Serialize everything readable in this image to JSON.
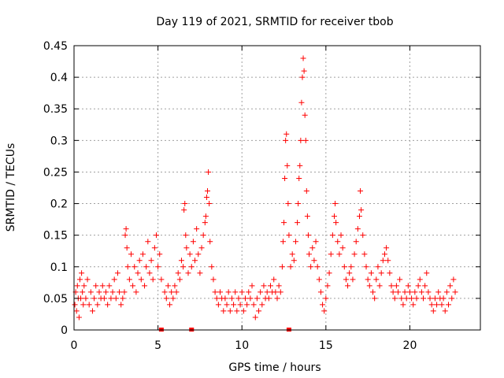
{
  "chart_data": {
    "type": "scatter",
    "title": "Day 119 of 2021, SRMTID for receiver tbob",
    "xlabel": "GPS time / hours",
    "ylabel": "SRMTID / TECUs",
    "xlim": [
      0,
      24.2
    ],
    "ylim": [
      0,
      0.45
    ],
    "x_ticks": [
      0,
      5,
      10,
      15,
      20
    ],
    "x_tick_labels": [
      "0",
      "5",
      "10",
      "15",
      "20"
    ],
    "y_ticks": [
      0,
      0.05,
      0.1,
      0.15,
      0.2,
      0.25,
      0.3,
      0.35,
      0.4,
      0.45
    ],
    "y_tick_labels": [
      "0",
      "0.05",
      "0.1",
      "0.15",
      "0.2",
      "0.25",
      "0.3",
      "0.35",
      "0.4",
      "0.45"
    ],
    "grid": true,
    "marker": "+",
    "color": "#ff0000",
    "series": [
      {
        "name": "SRMTID",
        "points": [
          [
            0.05,
            0.04
          ],
          [
            0.1,
            0.06
          ],
          [
            0.15,
            0.03
          ],
          [
            0.2,
            0.07
          ],
          [
            0.25,
            0.05
          ],
          [
            0.3,
            0.02
          ],
          [
            0.35,
            0.08
          ],
          [
            0.4,
            0.05
          ],
          [
            0.45,
            0.09
          ],
          [
            0.5,
            0.06
          ],
          [
            0.55,
            0.04
          ],
          [
            0.6,
            0.07
          ],
          [
            0.7,
            0.05
          ],
          [
            0.8,
            0.08
          ],
          [
            0.9,
            0.04
          ],
          [
            1.0,
            0.06
          ],
          [
            1.1,
            0.03
          ],
          [
            1.2,
            0.05
          ],
          [
            1.3,
            0.07
          ],
          [
            1.4,
            0.04
          ],
          [
            1.5,
            0.06
          ],
          [
            1.6,
            0.05
          ],
          [
            1.7,
            0.07
          ],
          [
            1.8,
            0.05
          ],
          [
            1.9,
            0.06
          ],
          [
            2.0,
            0.04
          ],
          [
            2.1,
            0.07
          ],
          [
            2.2,
            0.05
          ],
          [
            2.3,
            0.06
          ],
          [
            2.4,
            0.08
          ],
          [
            2.5,
            0.05
          ],
          [
            2.6,
            0.09
          ],
          [
            2.7,
            0.06
          ],
          [
            2.8,
            0.04
          ],
          [
            2.9,
            0.05
          ],
          [
            3.0,
            0.06
          ],
          [
            3.05,
            0.15
          ],
          [
            3.1,
            0.16
          ],
          [
            3.15,
            0.13
          ],
          [
            3.2,
            0.1
          ],
          [
            3.3,
            0.08
          ],
          [
            3.4,
            0.12
          ],
          [
            3.5,
            0.07
          ],
          [
            3.6,
            0.1
          ],
          [
            3.7,
            0.06
          ],
          [
            3.8,
            0.09
          ],
          [
            3.9,
            0.11
          ],
          [
            4.0,
            0.08
          ],
          [
            4.1,
            0.12
          ],
          [
            4.2,
            0.07
          ],
          [
            4.3,
            0.1
          ],
          [
            4.4,
            0.14
          ],
          [
            4.5,
            0.09
          ],
          [
            4.6,
            0.11
          ],
          [
            4.7,
            0.08
          ],
          [
            4.8,
            0.13
          ],
          [
            4.9,
            0.15
          ],
          [
            5.0,
            0.1
          ],
          [
            5.1,
            0.12
          ],
          [
            5.2,
            0.08
          ],
          [
            5.4,
            0.06
          ],
          [
            5.5,
            0.05
          ],
          [
            5.6,
            0.07
          ],
          [
            5.7,
            0.04
          ],
          [
            5.8,
            0.06
          ],
          [
            5.9,
            0.05
          ],
          [
            6.0,
            0.07
          ],
          [
            6.1,
            0.06
          ],
          [
            6.2,
            0.09
          ],
          [
            6.3,
            0.08
          ],
          [
            6.4,
            0.11
          ],
          [
            6.5,
            0.1
          ],
          [
            6.55,
            0.19
          ],
          [
            6.6,
            0.2
          ],
          [
            6.65,
            0.15
          ],
          [
            6.7,
            0.13
          ],
          [
            6.8,
            0.09
          ],
          [
            6.9,
            0.12
          ],
          [
            7.0,
            0.1
          ],
          [
            7.1,
            0.14
          ],
          [
            7.2,
            0.11
          ],
          [
            7.3,
            0.16
          ],
          [
            7.4,
            0.12
          ],
          [
            7.5,
            0.09
          ],
          [
            7.6,
            0.13
          ],
          [
            7.7,
            0.15
          ],
          [
            7.8,
            0.17
          ],
          [
            7.85,
            0.18
          ],
          [
            7.9,
            0.21
          ],
          [
            7.95,
            0.22
          ],
          [
            8.0,
            0.25
          ],
          [
            8.05,
            0.2
          ],
          [
            8.1,
            0.14
          ],
          [
            8.2,
            0.1
          ],
          [
            8.3,
            0.08
          ],
          [
            8.4,
            0.06
          ],
          [
            8.5,
            0.05
          ],
          [
            8.6,
            0.04
          ],
          [
            8.7,
            0.06
          ],
          [
            8.8,
            0.05
          ],
          [
            8.9,
            0.03
          ],
          [
            9.0,
            0.05
          ],
          [
            9.1,
            0.04
          ],
          [
            9.2,
            0.06
          ],
          [
            9.3,
            0.03
          ],
          [
            9.4,
            0.05
          ],
          [
            9.5,
            0.04
          ],
          [
            9.6,
            0.06
          ],
          [
            9.7,
            0.03
          ],
          [
            9.8,
            0.05
          ],
          [
            9.9,
            0.04
          ],
          [
            10.0,
            0.06
          ],
          [
            10.1,
            0.03
          ],
          [
            10.2,
            0.05
          ],
          [
            10.3,
            0.04
          ],
          [
            10.4,
            0.06
          ],
          [
            10.5,
            0.05
          ],
          [
            10.6,
            0.07
          ],
          [
            10.7,
            0.04
          ],
          [
            10.8,
            0.02
          ],
          [
            10.9,
            0.05
          ],
          [
            11.0,
            0.03
          ],
          [
            11.1,
            0.06
          ],
          [
            11.2,
            0.04
          ],
          [
            11.3,
            0.07
          ],
          [
            11.4,
            0.05
          ],
          [
            11.5,
            0.06
          ],
          [
            11.6,
            0.05
          ],
          [
            11.7,
            0.07
          ],
          [
            11.8,
            0.06
          ],
          [
            11.9,
            0.08
          ],
          [
            12.0,
            0.06
          ],
          [
            12.1,
            0.05
          ],
          [
            12.2,
            0.07
          ],
          [
            12.3,
            0.06
          ],
          [
            12.4,
            0.1
          ],
          [
            12.45,
            0.14
          ],
          [
            12.5,
            0.17
          ],
          [
            12.55,
            0.24
          ],
          [
            12.6,
            0.3
          ],
          [
            12.65,
            0.31
          ],
          [
            12.7,
            0.26
          ],
          [
            12.75,
            0.2
          ],
          [
            12.8,
            0.15
          ],
          [
            12.9,
            0.1
          ],
          [
            13.0,
            0.12
          ],
          [
            13.1,
            0.11
          ],
          [
            13.2,
            0.14
          ],
          [
            13.3,
            0.17
          ],
          [
            13.35,
            0.2
          ],
          [
            13.4,
            0.24
          ],
          [
            13.45,
            0.26
          ],
          [
            13.5,
            0.3
          ],
          [
            13.55,
            0.36
          ],
          [
            13.6,
            0.4
          ],
          [
            13.65,
            0.43
          ],
          [
            13.7,
            0.41
          ],
          [
            13.75,
            0.34
          ],
          [
            13.8,
            0.3
          ],
          [
            13.85,
            0.22
          ],
          [
            13.9,
            0.18
          ],
          [
            13.95,
            0.15
          ],
          [
            14.0,
            0.12
          ],
          [
            14.1,
            0.1
          ],
          [
            14.2,
            0.13
          ],
          [
            14.3,
            0.11
          ],
          [
            14.4,
            0.14
          ],
          [
            14.5,
            0.1
          ],
          [
            14.6,
            0.08
          ],
          [
            14.7,
            0.06
          ],
          [
            14.8,
            0.04
          ],
          [
            14.9,
            0.03
          ],
          [
            15.0,
            0.05
          ],
          [
            15.1,
            0.07
          ],
          [
            15.2,
            0.09
          ],
          [
            15.3,
            0.12
          ],
          [
            15.4,
            0.15
          ],
          [
            15.5,
            0.18
          ],
          [
            15.55,
            0.2
          ],
          [
            15.6,
            0.17
          ],
          [
            15.7,
            0.14
          ],
          [
            15.8,
            0.12
          ],
          [
            15.9,
            0.15
          ],
          [
            16.0,
            0.13
          ],
          [
            16.1,
            0.1
          ],
          [
            16.2,
            0.08
          ],
          [
            16.3,
            0.07
          ],
          [
            16.4,
            0.09
          ],
          [
            16.5,
            0.1
          ],
          [
            16.6,
            0.08
          ],
          [
            16.7,
            0.12
          ],
          [
            16.8,
            0.14
          ],
          [
            16.9,
            0.16
          ],
          [
            17.0,
            0.18
          ],
          [
            17.05,
            0.22
          ],
          [
            17.1,
            0.19
          ],
          [
            17.2,
            0.15
          ],
          [
            17.3,
            0.12
          ],
          [
            17.4,
            0.1
          ],
          [
            17.5,
            0.08
          ],
          [
            17.6,
            0.07
          ],
          [
            17.7,
            0.09
          ],
          [
            17.8,
            0.06
          ],
          [
            17.9,
            0.05
          ],
          [
            18.0,
            0.08
          ],
          [
            18.1,
            0.1
          ],
          [
            18.2,
            0.07
          ],
          [
            18.3,
            0.09
          ],
          [
            18.4,
            0.11
          ],
          [
            18.5,
            0.12
          ],
          [
            18.6,
            0.13
          ],
          [
            18.7,
            0.11
          ],
          [
            18.8,
            0.09
          ],
          [
            18.9,
            0.07
          ],
          [
            19.0,
            0.06
          ],
          [
            19.1,
            0.05
          ],
          [
            19.2,
            0.07
          ],
          [
            19.3,
            0.06
          ],
          [
            19.4,
            0.08
          ],
          [
            19.5,
            0.05
          ],
          [
            19.6,
            0.04
          ],
          [
            19.7,
            0.06
          ],
          [
            19.8,
            0.05
          ],
          [
            19.9,
            0.07
          ],
          [
            20.0,
            0.06
          ],
          [
            20.1,
            0.05
          ],
          [
            20.2,
            0.04
          ],
          [
            20.3,
            0.06
          ],
          [
            20.4,
            0.05
          ],
          [
            20.5,
            0.07
          ],
          [
            20.6,
            0.08
          ],
          [
            20.7,
            0.06
          ],
          [
            20.8,
            0.05
          ],
          [
            20.9,
            0.07
          ],
          [
            21.0,
            0.09
          ],
          [
            21.1,
            0.06
          ],
          [
            21.2,
            0.05
          ],
          [
            21.3,
            0.04
          ],
          [
            21.4,
            0.03
          ],
          [
            21.5,
            0.05
          ],
          [
            21.6,
            0.04
          ],
          [
            21.7,
            0.06
          ],
          [
            21.8,
            0.05
          ],
          [
            21.9,
            0.04
          ],
          [
            22.0,
            0.05
          ],
          [
            22.1,
            0.03
          ],
          [
            22.2,
            0.06
          ],
          [
            22.3,
            0.04
          ],
          [
            22.4,
            0.07
          ],
          [
            22.5,
            0.05
          ],
          [
            22.6,
            0.08
          ],
          [
            22.7,
            0.06
          ]
        ]
      }
    ],
    "gaps": [
      5.2,
      7.0,
      12.8
    ]
  }
}
